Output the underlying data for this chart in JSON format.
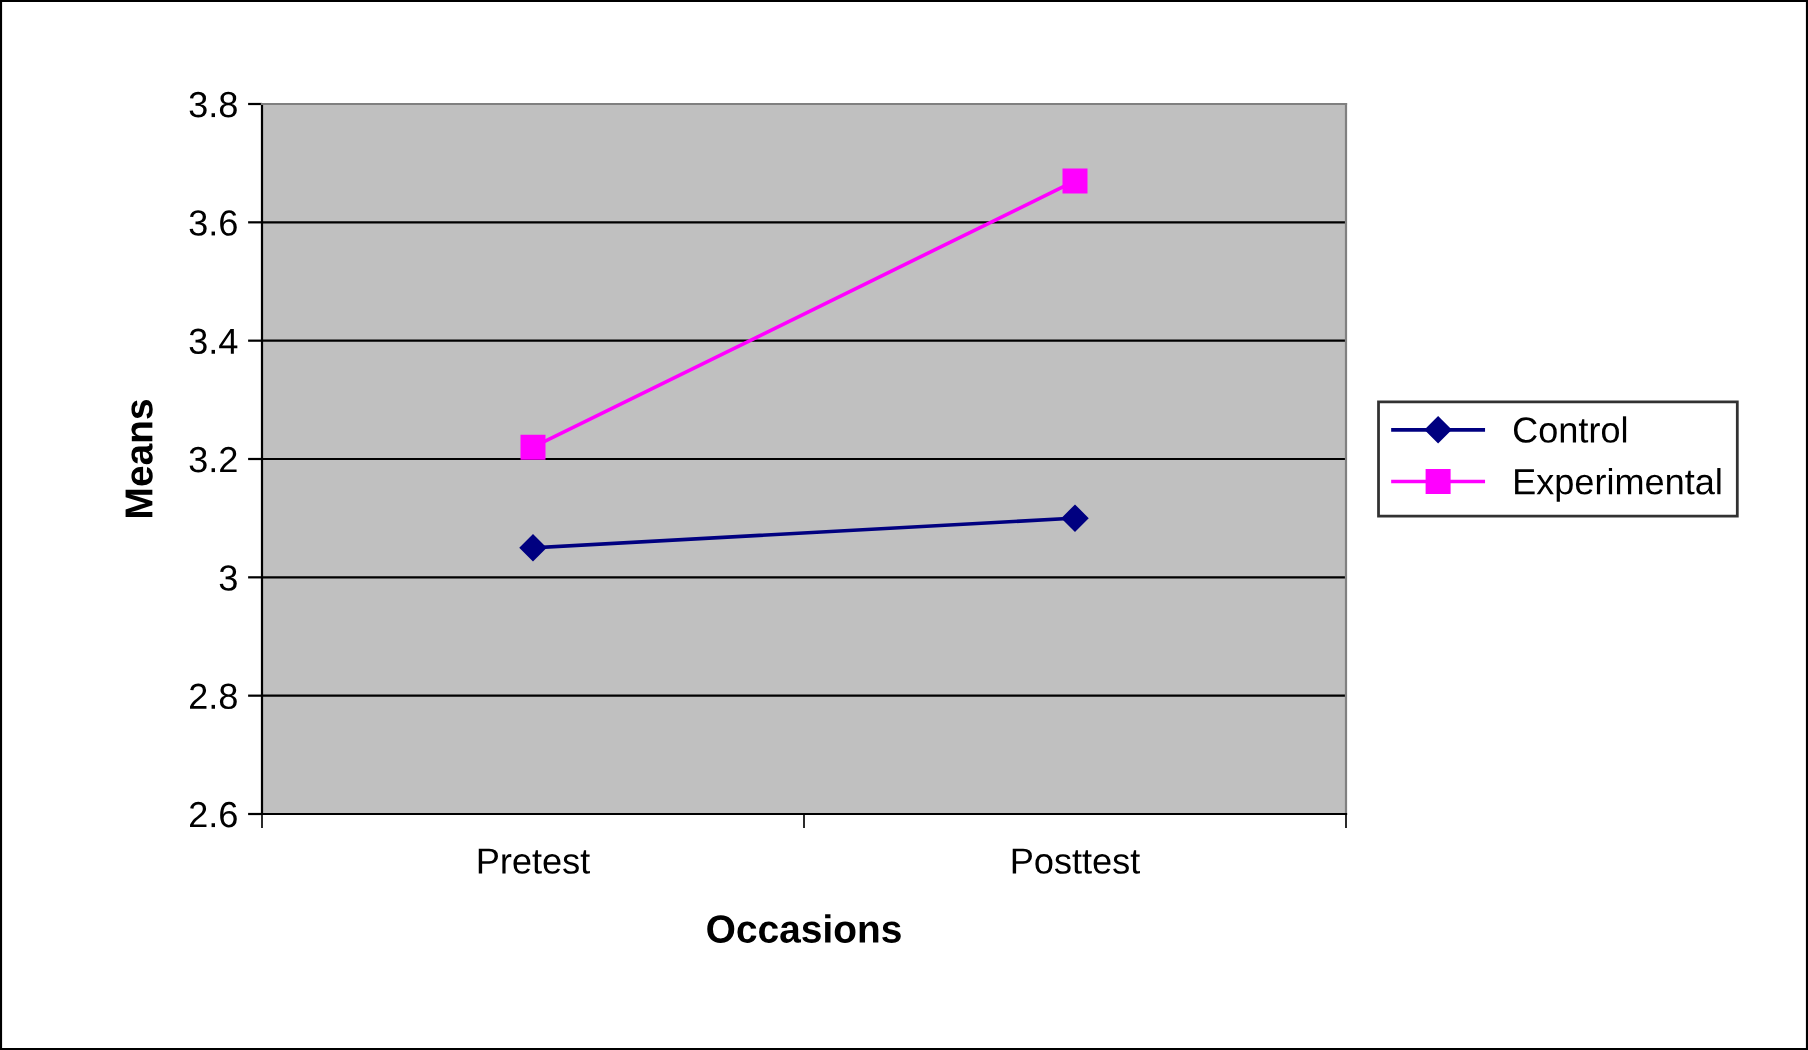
{
  "chart_data": {
    "type": "line",
    "xlabel": "Occasions",
    "ylabel": "Means",
    "categories": [
      "Pretest",
      "Posttest"
    ],
    "series": [
      {
        "name": "Control",
        "color": "#000080",
        "marker": "diamond",
        "values": [
          3.05,
          3.1
        ]
      },
      {
        "name": "Experimental",
        "color": "#ff00ff",
        "marker": "square",
        "values": [
          3.22,
          3.67
        ]
      }
    ],
    "ylim": [
      2.6,
      3.8
    ],
    "yticks": [
      2.6,
      2.8,
      3,
      3.2,
      3.4,
      3.6,
      3.8
    ],
    "grid": "y",
    "legend": "right"
  }
}
